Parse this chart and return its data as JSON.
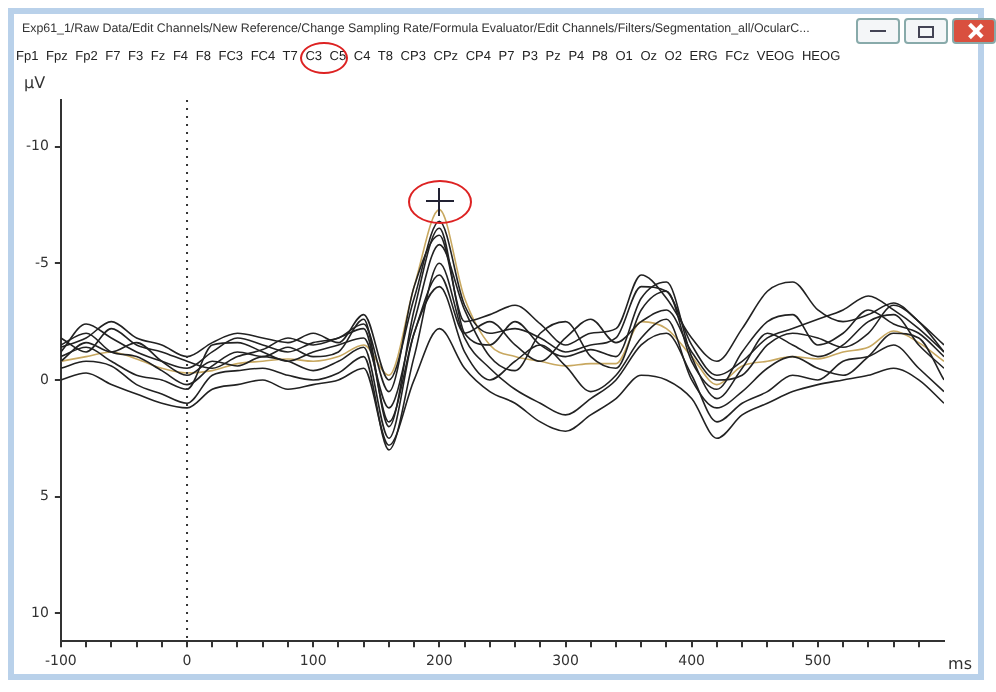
{
  "chart_data": {
    "type": "line",
    "title": "Exp61_1/Raw Data/Edit Channels/New Reference/Change Sampling Rate/Formula Evaluator/Edit Channels/Filters/Segmentation_all/OcularC...",
    "subtitle": "Fp1 Fpz Fp2 F7 F3 Fz F4 F8 FC3 FC4 T7 C3 C5 C4 T8 CP3 CPz CP4 P7 P3 Pz P4 P8 O1 Oz O2 ERG FCz VEOG HEOG",
    "xlabel": "ms",
    "ylabel": "µV",
    "x": [
      -100,
      -80,
      -60,
      -40,
      -20,
      0,
      20,
      40,
      60,
      80,
      100,
      120,
      140,
      160,
      180,
      200,
      220,
      240,
      260,
      280,
      300,
      320,
      340,
      360,
      380,
      400,
      420,
      440,
      460,
      480,
      500,
      520,
      540,
      560,
      580,
      600
    ],
    "xlim": [
      -100,
      600
    ],
    "xticks": [
      -100,
      {
        "value": -80,
        "label": null
      },
      {
        "value": -60,
        "label": null
      },
      {
        "value": -40,
        "label": null
      },
      {
        "value": -20,
        "label": null
      },
      0,
      {
        "value": 20,
        "label": null
      },
      {
        "value": 40,
        "label": null
      },
      {
        "value": 60,
        "label": null
      },
      {
        "value": 80,
        "label": null
      },
      100,
      {
        "value": 120,
        "label": null
      },
      {
        "value": 140,
        "label": null
      },
      {
        "value": 160,
        "label": null
      },
      {
        "value": 180,
        "label": null
      },
      200,
      {
        "value": 220,
        "label": null
      },
      {
        "value": 240,
        "label": null
      },
      {
        "value": 260,
        "label": null
      },
      {
        "value": 280,
        "label": null
      },
      300,
      {
        "value": 320,
        "label": null
      },
      {
        "value": 340,
        "label": null
      },
      {
        "value": 360,
        "label": null
      },
      {
        "value": 380,
        "label": null
      },
      400,
      {
        "value": 420,
        "label": null
      },
      {
        "value": 440,
        "label": null
      },
      {
        "value": 460,
        "label": null
      },
      {
        "value": 480,
        "label": null
      },
      500,
      {
        "value": 520,
        "label": null
      },
      {
        "value": 540,
        "label": null
      },
      {
        "value": 560,
        "label": null
      },
      {
        "value": 580,
        "label": null
      }
    ],
    "ylim": [
      11.2,
      -12
    ],
    "yticks": [
      -10,
      -5,
      0,
      5,
      10
    ],
    "grid": false,
    "legend": false,
    "marker": "none",
    "line_style": "solid",
    "ref_lines": [
      {
        "axis": "x",
        "value": 0,
        "color": "#333333",
        "line_style": "dotted"
      }
    ],
    "series": [
      {
        "color": "#222222",
        "values": [
          -1.5,
          -2,
          -1.2,
          -1,
          -0.4,
          0.2,
          -0.6,
          -1.2,
          -1,
          -1.4,
          -1,
          -1.2,
          -2.6,
          2,
          -3,
          -6.5,
          -2,
          -1.5,
          -2.5,
          -1.5,
          -1,
          -1.3,
          -1,
          -3.5,
          -4.2,
          -1,
          0.8,
          -0.5,
          -2,
          -1.5,
          -1,
          -1.5,
          -2.5,
          -2.8,
          -1.5,
          -0.5
        ]
      },
      {
        "color": "#222222",
        "values": [
          -0.5,
          -0.8,
          -0.6,
          0.2,
          0.6,
          1,
          -0.2,
          -0.4,
          -0.5,
          -0.2,
          0,
          -0.3,
          -1,
          3,
          -1,
          -5,
          -1.8,
          -0.5,
          0.4,
          1,
          1.5,
          0.8,
          0,
          -1.5,
          -2,
          -0.2,
          1.8,
          1,
          0.5,
          -0.2,
          0,
          -0.8,
          -1,
          -1.5,
          -0.5,
          0.5
        ]
      },
      {
        "color": "#222222",
        "values": [
          -1.2,
          -2.4,
          -1.8,
          -1.2,
          -0.8,
          -0.5,
          -1.2,
          -1.8,
          -1.5,
          -1.2,
          -1.6,
          -1.8,
          -2.4,
          0.5,
          -4,
          -6.2,
          -2.5,
          -2.8,
          -3.2,
          -2.4,
          -1.5,
          -2,
          -2.2,
          -4.5,
          -3.5,
          -1.8,
          -0.8,
          -2.2,
          -3.8,
          -4.2,
          -3,
          -2.5,
          -2.8,
          -3.3,
          -2.5,
          -1.5
        ]
      },
      {
        "color": "#222222",
        "values": [
          0,
          -0.3,
          0.2,
          0.6,
          1,
          1.2,
          0.4,
          0.2,
          0,
          0.4,
          0.2,
          0,
          -0.5,
          2.8,
          0,
          -2.2,
          -0.5,
          0.5,
          1,
          1.8,
          2.2,
          1.5,
          0.8,
          -0.2,
          0,
          0.8,
          2.5,
          1.5,
          1,
          0.5,
          0.2,
          0,
          -0.2,
          -0.5,
          0,
          1
        ]
      },
      {
        "color": "#222222",
        "values": [
          -1,
          -1.4,
          -0.8,
          -0.2,
          0,
          0.4,
          -1.5,
          -1.6,
          -1.2,
          -0.8,
          -1.2,
          -1.5,
          -1.8,
          1.2,
          -2.5,
          -5.8,
          -3,
          -1,
          -0.4,
          -2,
          -2.5,
          -1,
          -0.5,
          -3,
          -3.8,
          -0.8,
          0.4,
          -1.2,
          -2.5,
          -2.8,
          -1.5,
          -2,
          -3,
          -2.4,
          -2,
          -1
        ]
      },
      {
        "color": "#222222",
        "values": [
          -1.8,
          -1.2,
          -2.2,
          -1.5,
          -1.2,
          -0.8,
          -0.5,
          -1,
          -1.3,
          -1.8,
          -1.5,
          -1.8,
          -2.2,
          1.8,
          -2,
          -4.5,
          -2,
          -2.5,
          -1.5,
          -0.8,
          -1.8,
          -2.6,
          -1.6,
          -2.5,
          -3,
          -1.2,
          0,
          -0.2,
          -1.5,
          -2,
          -1.8,
          -1.4,
          -2,
          -3.2,
          -2.5,
          -1.2
        ]
      },
      {
        "color": "#222222",
        "values": [
          -0.8,
          -1.6,
          -1.2,
          -1.6,
          -0.8,
          -0.2,
          -0.8,
          -0.6,
          -1,
          -0.8,
          -0.4,
          -0.8,
          -1.4,
          2.5,
          -2,
          -4,
          -1.2,
          0,
          -0.8,
          -1.5,
          -0.6,
          0.5,
          -0.2,
          -1.8,
          -2.6,
          0,
          1.2,
          0.5,
          -0.5,
          -1,
          -0.5,
          -0.2,
          -1,
          -2,
          -1.8,
          0
        ]
      },
      {
        "color": "#222222",
        "values": [
          -1.4,
          -1.8,
          -2.5,
          -1.8,
          -1.5,
          -1,
          -1.6,
          -2,
          -1.8,
          -1.6,
          -2,
          -1.6,
          -2.8,
          0,
          -3.5,
          -6.8,
          -3.2,
          -2,
          -2.2,
          -1.8,
          -1.2,
          -1.5,
          -1.8,
          -4,
          -3.8,
          -1.5,
          -0.2,
          -0.8,
          -1.8,
          -2.2,
          -2.6,
          -3,
          -3.6,
          -3,
          -2.2,
          -1.2
        ]
      },
      {
        "color": "#c8a860",
        "values": [
          -0.8,
          -1,
          -1.2,
          -0.9,
          -0.5,
          -0.3,
          -0.4,
          -0.7,
          -0.8,
          -0.9,
          -0.8,
          -1,
          -1.5,
          -0.2,
          -4,
          -7.3,
          -3.5,
          -1.5,
          -1,
          -0.8,
          -0.6,
          -0.7,
          -0.7,
          -2.5,
          -2.2,
          -1,
          0.2,
          -0.6,
          -0.8,
          -1,
          -0.9,
          -1.2,
          -1.4,
          -2.1,
          -1.6,
          -0.8
        ]
      }
    ]
  }
}
